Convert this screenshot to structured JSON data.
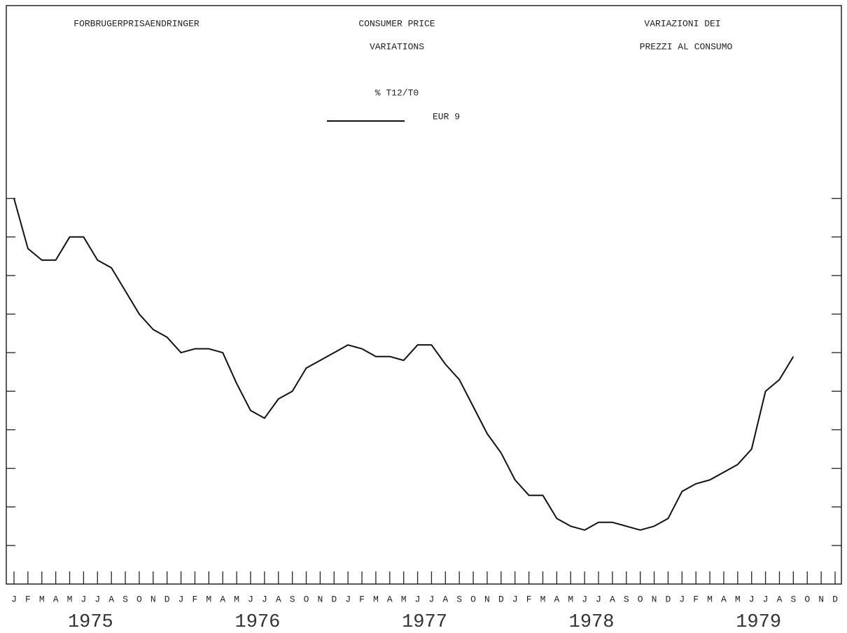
{
  "chart_data": {
    "type": "line",
    "titles": [
      [
        "FORBRUGERPRISAENDRINGER"
      ],
      [
        "CONSUMER PRICE",
        "VARIATIONS"
      ],
      [
        "VARIAZIONI DEI",
        "PREZZI AL CONSUMO"
      ]
    ],
    "subtitle": "% T12/T0",
    "categories": [
      "J",
      "F",
      "M",
      "A",
      "M",
      "J",
      "J",
      "A",
      "S",
      "O",
      "N",
      "D",
      "J",
      "F",
      "M",
      "A",
      "M",
      "J",
      "J",
      "A",
      "S",
      "O",
      "N",
      "D",
      "J",
      "F",
      "M",
      "A",
      "M",
      "J",
      "J",
      "A",
      "S",
      "O",
      "N",
      "D",
      "J",
      "F",
      "M",
      "A",
      "M",
      "J",
      "J",
      "A",
      "S",
      "O",
      "N",
      "D",
      "J",
      "F",
      "M",
      "A",
      "M",
      "J",
      "J",
      "A",
      "S",
      "O",
      "N",
      "D"
    ],
    "years": [
      "1975",
      "1976",
      "1977",
      "1978",
      "1979"
    ],
    "series": [
      {
        "name": "EUR 9",
        "color": "#111111",
        "values": [
          13.0,
          11.7,
          11.4,
          11.4,
          12.0,
          12.0,
          11.4,
          11.2,
          10.6,
          10.0,
          9.6,
          9.4,
          9.0,
          9.1,
          9.1,
          9.0,
          8.2,
          7.5,
          7.3,
          7.8,
          8.0,
          8.6,
          8.8,
          9.0,
          9.2,
          9.1,
          8.9,
          8.9,
          8.8,
          9.2,
          9.2,
          8.7,
          8.3,
          7.6,
          6.9,
          6.4,
          5.7,
          5.3,
          5.3,
          4.7,
          4.5,
          4.4,
          4.6,
          4.6,
          4.5,
          4.4,
          4.5,
          4.7,
          5.4,
          5.6,
          5.7,
          5.9,
          6.1,
          6.5,
          8.0,
          8.3,
          8.9,
          null,
          null,
          null
        ]
      }
    ],
    "ylim": [
      3,
      18
    ],
    "yticks": [
      4,
      5,
      6,
      7,
      8,
      9,
      10,
      11,
      12,
      13
    ]
  }
}
